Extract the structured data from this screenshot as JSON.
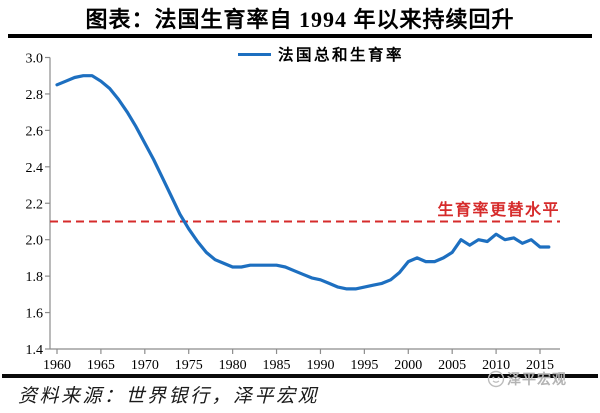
{
  "title": "图表：法国生育率自 1994 年以来持续回升",
  "legend": {
    "label": "法国总和生育率"
  },
  "annotation": {
    "replacement_label": "生育率更替水平"
  },
  "footer": {
    "source": "资料来源：世界银行，泽平宏观",
    "watermark": "泽平宏观"
  },
  "colors": {
    "line": "#1d6fc0",
    "reference": "#d62b2b",
    "axis": "#8c8c8c",
    "text": "#000000",
    "watermark": "#b3b3b3"
  },
  "chart_data": {
    "type": "line",
    "title": "图表：法国生育率自 1994 年以来持续回升",
    "xlabel": "",
    "ylabel": "",
    "ylim": [
      1.4,
      3.0
    ],
    "ytick_labels": [
      "3.0",
      "2.8",
      "2.6",
      "2.4",
      "2.2",
      "2.0",
      "1.8",
      "1.6",
      "1.4"
    ],
    "xticks": [
      1960,
      1965,
      1970,
      1975,
      1980,
      1985,
      1990,
      1995,
      2000,
      2005,
      2010,
      2015
    ],
    "grid": false,
    "legend_position": "top-center",
    "x": [
      1960,
      1961,
      1962,
      1963,
      1964,
      1965,
      1966,
      1967,
      1968,
      1969,
      1970,
      1971,
      1972,
      1973,
      1974,
      1975,
      1976,
      1977,
      1978,
      1979,
      1980,
      1981,
      1982,
      1983,
      1984,
      1985,
      1986,
      1987,
      1988,
      1989,
      1990,
      1991,
      1992,
      1993,
      1994,
      1995,
      1996,
      1997,
      1998,
      1999,
      2000,
      2001,
      2002,
      2003,
      2004,
      2005,
      2006,
      2007,
      2008,
      2009,
      2010,
      2011,
      2012,
      2013,
      2014,
      2015,
      2016
    ],
    "series": [
      {
        "name": "法国总和生育率",
        "values": [
          2.85,
          2.87,
          2.89,
          2.9,
          2.9,
          2.87,
          2.83,
          2.77,
          2.7,
          2.62,
          2.53,
          2.44,
          2.34,
          2.24,
          2.14,
          2.06,
          1.99,
          1.93,
          1.89,
          1.87,
          1.85,
          1.85,
          1.86,
          1.86,
          1.86,
          1.86,
          1.85,
          1.83,
          1.81,
          1.79,
          1.78,
          1.76,
          1.74,
          1.73,
          1.73,
          1.74,
          1.75,
          1.76,
          1.78,
          1.82,
          1.88,
          1.9,
          1.88,
          1.88,
          1.9,
          1.93,
          2.0,
          1.97,
          2.0,
          1.99,
          2.03,
          2.0,
          2.01,
          1.98,
          2.0,
          1.96,
          1.96
        ]
      }
    ],
    "reference_line": {
      "value": 2.1,
      "label": "生育率更替水平",
      "style": "dashed"
    }
  }
}
